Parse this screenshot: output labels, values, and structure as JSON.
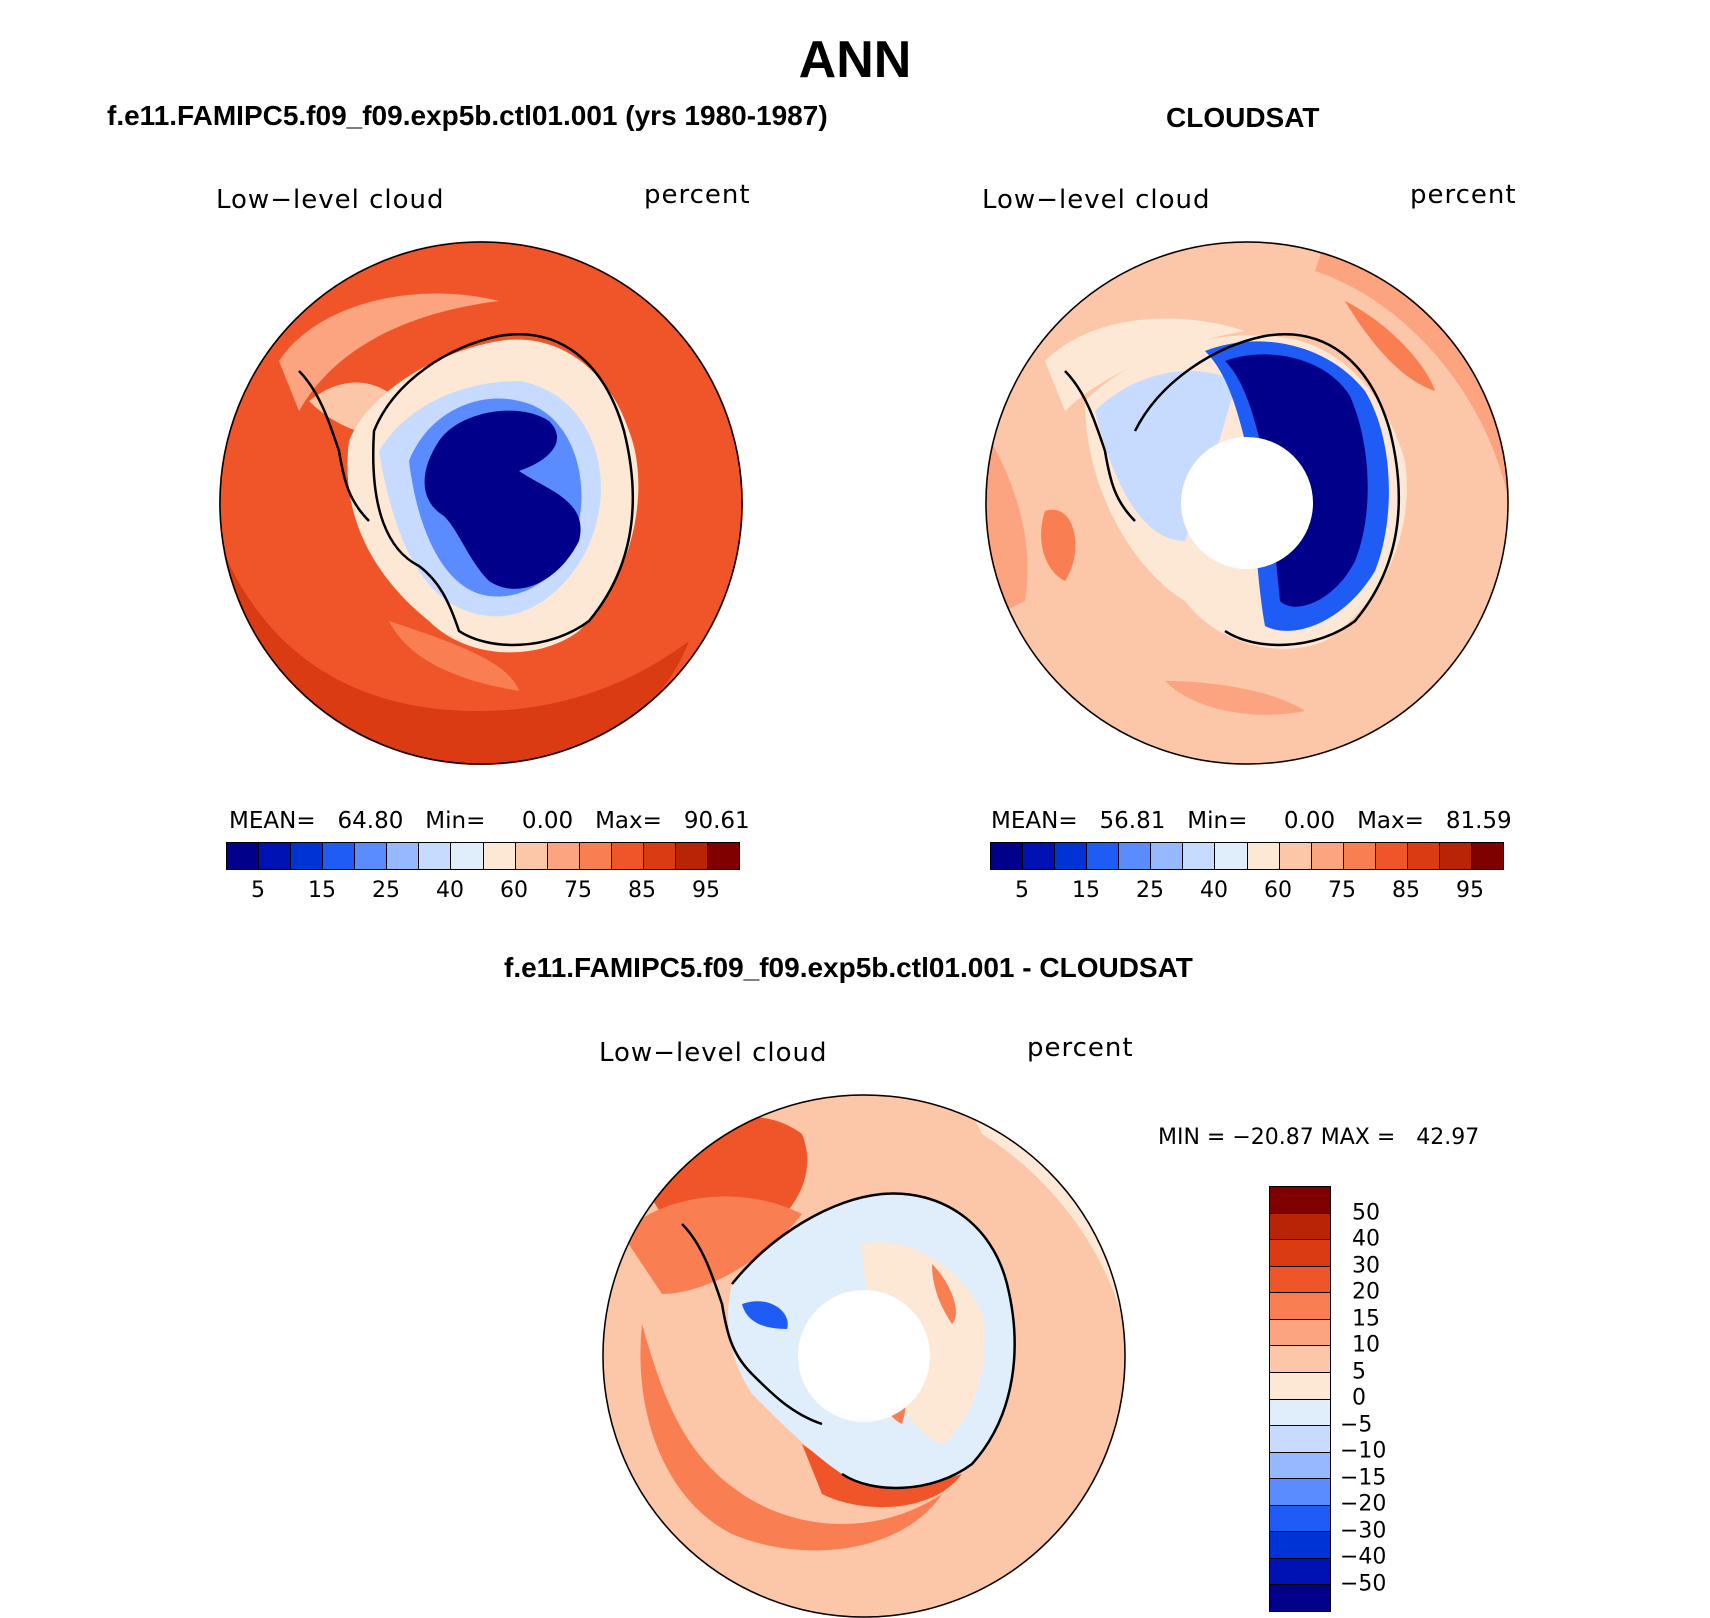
{
  "title": "ANN",
  "palette": [
    "#00008b",
    "#0012b3",
    "#0033d6",
    "#1f5cf5",
    "#5b8cff",
    "#95b8ff",
    "#c6dbff",
    "#e0eefc",
    "#fde8d6",
    "#fcc6a8",
    "#fca480",
    "#f97e52",
    "#f0552a",
    "#db3b12",
    "#b82506",
    "#800000"
  ],
  "diff_palette": [
    "#00008b",
    "#0012b3",
    "#0033d6",
    "#1f5cf5",
    "#5b8cff",
    "#95b8ff",
    "#c6dbff",
    "#e0eefc",
    "#fde8d6",
    "#fcc6a8",
    "#fca480",
    "#f97e52",
    "#f0552a",
    "#db3b12",
    "#b82506",
    "#800000"
  ],
  "panels": [
    {
      "case_title": "f.e11.FAMIPC5.f09_f09.exp5b.ctl01.001 (yrs 1980-1987)",
      "var_label": "Low−level cloud",
      "units": "percent",
      "stats": "MEAN=   64.80   Min=     0.00   Max=   90.61",
      "ticks": [
        "5",
        "15",
        "25",
        "40",
        "60",
        "75",
        "85",
        "95"
      ]
    },
    {
      "case_title": "CLOUDSAT",
      "var_label": "Low−level cloud",
      "units": "percent",
      "stats": "MEAN=   56.81   Min=     0.00   Max=   81.59",
      "ticks": [
        "5",
        "15",
        "25",
        "40",
        "60",
        "75",
        "85",
        "95"
      ]
    }
  ],
  "diff": {
    "case_title": "f.e11.FAMIPC5.f09_f09.exp5b.ctl01.001 - CLOUDSAT",
    "var_label": "Low−level cloud",
    "units": "percent",
    "minmax": "MIN = −20.87 MAX =   42.97",
    "ticks": [
      "50",
      "40",
      "30",
      "20",
      "15",
      "10",
      "5",
      "0",
      "−5",
      "−10",
      "−15",
      "−20",
      "−30",
      "−40",
      "−50"
    ]
  }
}
